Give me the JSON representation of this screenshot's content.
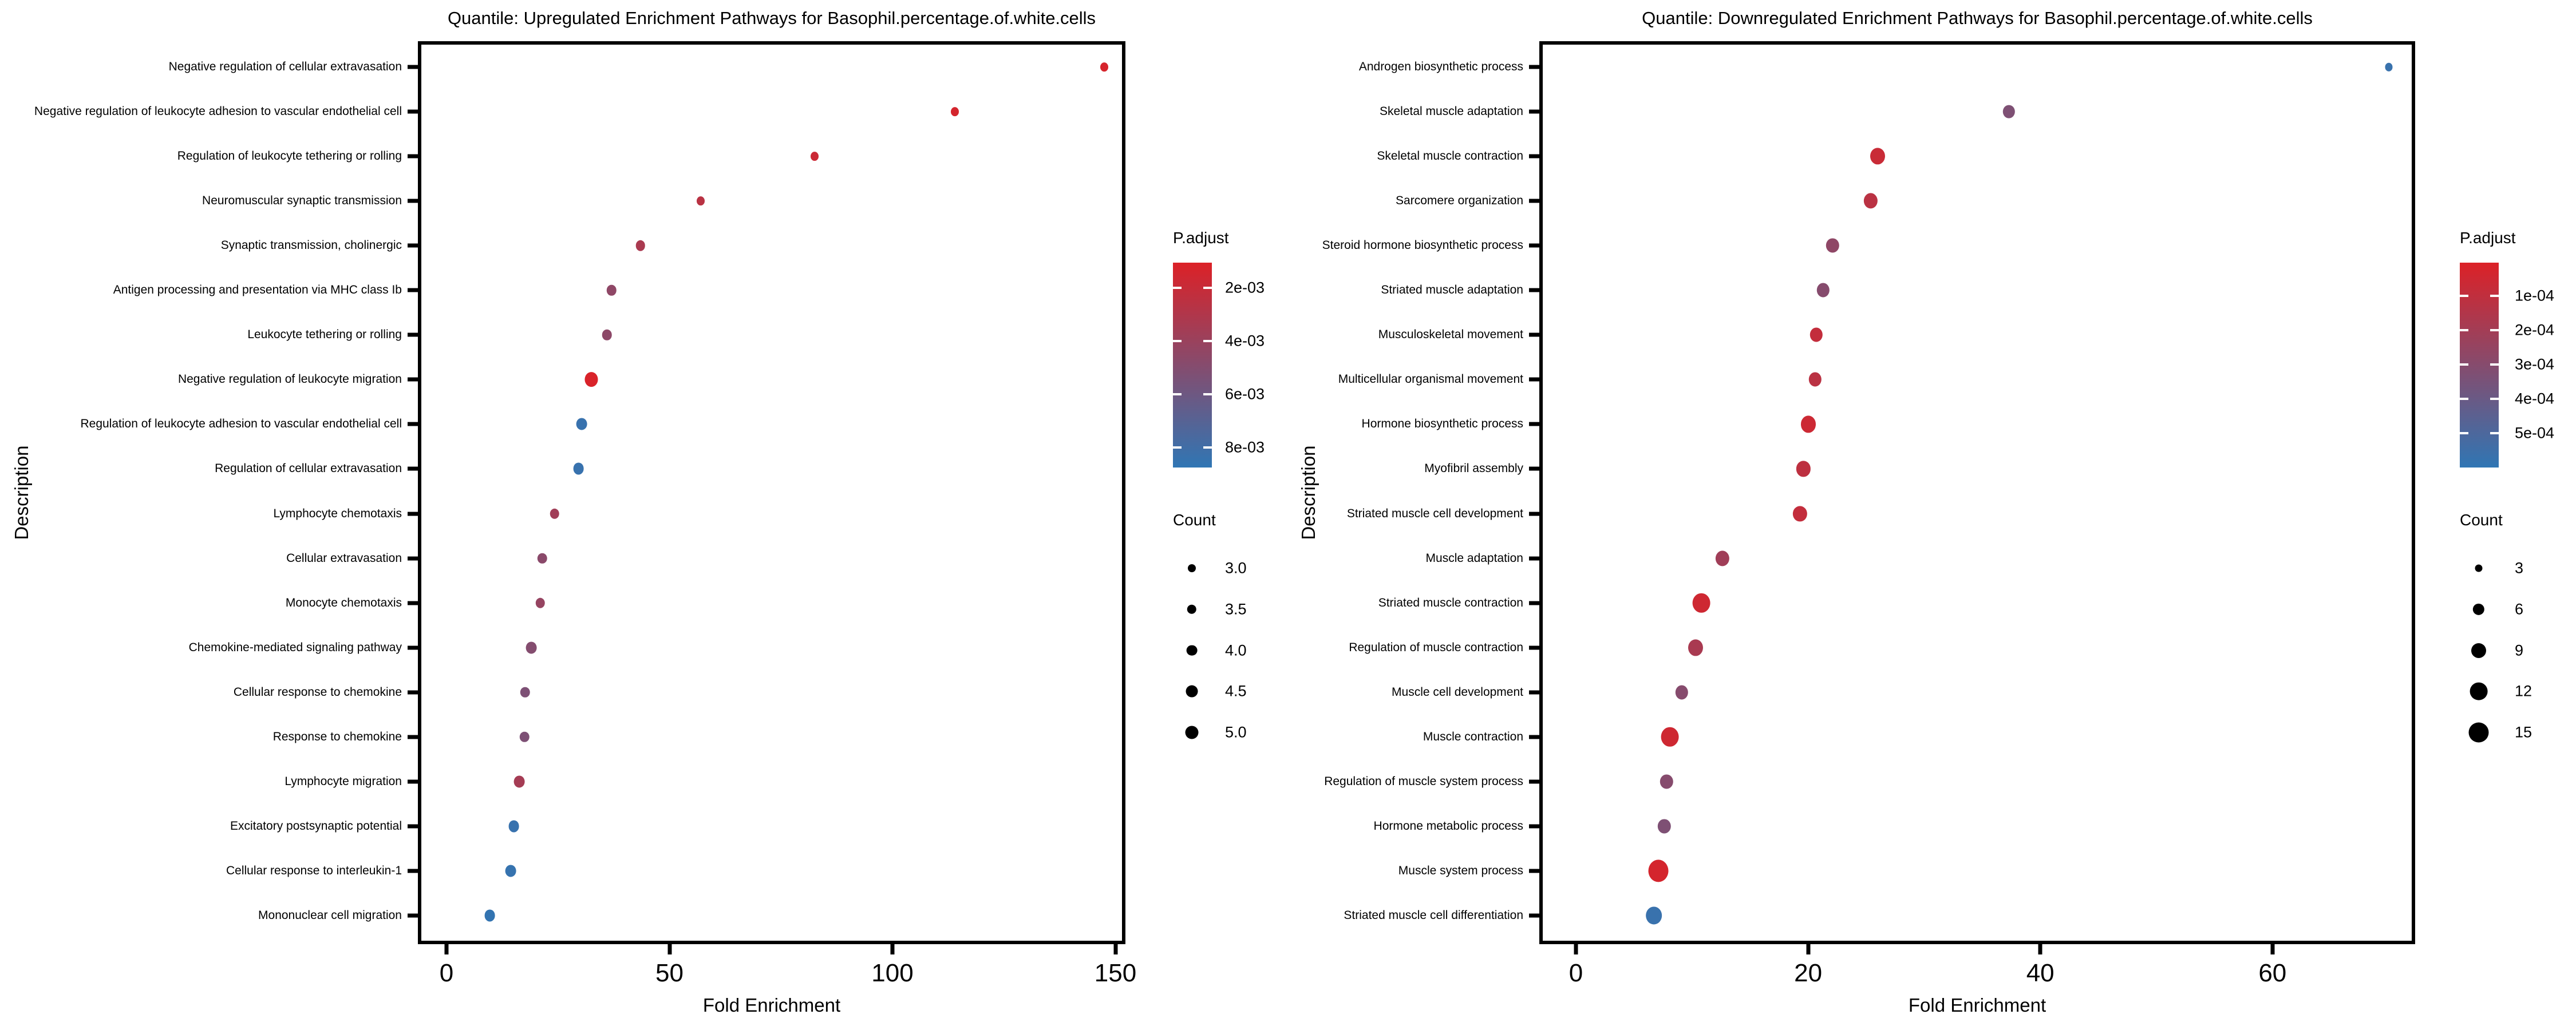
{
  "figure": {
    "background": "#ffffff",
    "text_color": "#000000"
  },
  "chart_data": [
    {
      "type": "scatter",
      "title": "Quantile: Upregulated Enrichment Pathways for Basophil.percentage.of.white.cells",
      "xlabel": "Fold Enrichment",
      "ylabel": "Description",
      "x_ticks": [
        0,
        50,
        100,
        150
      ],
      "xlim": [
        -8,
        152
      ],
      "grid": false,
      "legend_position": "right",
      "color_scale": {
        "title": "P.adjust",
        "color_low_p": "#DC2127",
        "color_high_p": "#3076B4",
        "domain": [
          0.00105,
          0.00875
        ],
        "ticks": [
          {
            "label": "2e-03",
            "value": 0.002
          },
          {
            "label": "4e-03",
            "value": 0.004
          },
          {
            "label": "6e-03",
            "value": 0.006
          },
          {
            "label": "8e-03",
            "value": 0.008
          }
        ]
      },
      "size_scale": {
        "title": "Count",
        "domain": [
          3,
          5
        ],
        "items": [
          {
            "label": "3.0",
            "value": 3
          },
          {
            "label": "3.5",
            "value": 3.5
          },
          {
            "label": "4.0",
            "value": 4
          },
          {
            "label": "4.5",
            "value": 4.5
          },
          {
            "label": "5.0",
            "value": 5
          }
        ]
      },
      "points": [
        {
          "label": "Negative regulation of cellular extravasation",
          "fold_enrichment": 147.5,
          "p_adjust": 0.0013,
          "count": 3
        },
        {
          "label": "Negative regulation of leukocyte adhesion to vascular endothelial cell",
          "fold_enrichment": 114,
          "p_adjust": 0.0014,
          "count": 3
        },
        {
          "label": "Regulation of leukocyte tethering or rolling",
          "fold_enrichment": 82.5,
          "p_adjust": 0.0018,
          "count": 3
        },
        {
          "label": "Neuromuscular synaptic transmission",
          "fold_enrichment": 57,
          "p_adjust": 0.0026,
          "count": 3
        },
        {
          "label": "Synaptic transmission, cholinergic",
          "fold_enrichment": 43.5,
          "p_adjust": 0.0033,
          "count": 3.5
        },
        {
          "label": "Antigen processing and presentation via MHC class Ib",
          "fold_enrichment": 37,
          "p_adjust": 0.0045,
          "count": 3.5
        },
        {
          "label": "Leukocyte tethering or rolling",
          "fold_enrichment": 36,
          "p_adjust": 0.0046,
          "count": 3.5
        },
        {
          "label": "Negative regulation of leukocyte migration",
          "fold_enrichment": 32.5,
          "p_adjust": 0.0012,
          "count": 5
        },
        {
          "label": "Regulation of leukocyte adhesion to vascular endothelial cell",
          "fold_enrichment": 30.3,
          "p_adjust": 0.0084,
          "count": 4
        },
        {
          "label": "Regulation of cellular extravasation",
          "fold_enrichment": 29.6,
          "p_adjust": 0.0084,
          "count": 4
        },
        {
          "label": "Lymphocyte chemotaxis",
          "fold_enrichment": 24.2,
          "p_adjust": 0.0037,
          "count": 3.5
        },
        {
          "label": "Cellular extravasation",
          "fold_enrichment": 21.5,
          "p_adjust": 0.0047,
          "count": 3.5
        },
        {
          "label": "Monocyte chemotaxis",
          "fold_enrichment": 21.0,
          "p_adjust": 0.0042,
          "count": 3.5
        },
        {
          "label": "Chemokine-mediated signaling pathway",
          "fold_enrichment": 19.0,
          "p_adjust": 0.005,
          "count": 4
        },
        {
          "label": "Cellular response to chemokine",
          "fold_enrichment": 17.6,
          "p_adjust": 0.0053,
          "count": 3.5
        },
        {
          "label": "Response to chemokine",
          "fold_enrichment": 17.5,
          "p_adjust": 0.0053,
          "count": 3.5
        },
        {
          "label": "Lymphocyte migration",
          "fold_enrichment": 16.3,
          "p_adjust": 0.0035,
          "count": 4
        },
        {
          "label": "Excitatory postsynaptic potential",
          "fold_enrichment": 15.1,
          "p_adjust": 0.0084,
          "count": 4
        },
        {
          "label": "Cellular response to interleukin-1",
          "fold_enrichment": 14.4,
          "p_adjust": 0.0085,
          "count": 4
        },
        {
          "label": "Mononuclear cell migration",
          "fold_enrichment": 9.7,
          "p_adjust": 0.0086,
          "count": 4
        }
      ]
    },
    {
      "type": "scatter",
      "title": "Quantile: Downregulated Enrichment Pathways for Basophil.percentage.of.white.cells",
      "xlabel": "Fold Enrichment",
      "ylabel": "Description",
      "x_ticks": [
        0,
        20,
        40,
        60
      ],
      "xlim": [
        -3.5,
        73.5
      ],
      "grid": false,
      "legend_position": "right",
      "color_scale": {
        "title": "P.adjust",
        "color_low_p": "#DC2127",
        "color_high_p": "#3076B4",
        "domain": [
          3e-06,
          0.0006
        ],
        "ticks": [
          {
            "label": "1e-04",
            "value": 0.0001
          },
          {
            "label": "2e-04",
            "value": 0.0002
          },
          {
            "label": "3e-04",
            "value": 0.0003
          },
          {
            "label": "4e-04",
            "value": 0.0004
          },
          {
            "label": "5e-04",
            "value": 0.0005
          }
        ]
      },
      "size_scale": {
        "title": "Count",
        "domain": [
          3,
          15
        ],
        "items": [
          {
            "label": "3",
            "value": 3
          },
          {
            "label": "6",
            "value": 6
          },
          {
            "label": "9",
            "value": 9
          },
          {
            "label": "12",
            "value": 12
          },
          {
            "label": "15",
            "value": 15
          }
        ]
      },
      "points": [
        {
          "label": "Androgen biosynthetic process",
          "fold_enrichment": 70,
          "p_adjust": 0.00057,
          "count": 3
        },
        {
          "label": "Skeletal muscle adaptation",
          "fold_enrichment": 37.3,
          "p_adjust": 0.00033,
          "count": 6
        },
        {
          "label": "Skeletal muscle contraction",
          "fold_enrichment": 26.0,
          "p_adjust": 7e-05,
          "count": 9
        },
        {
          "label": "Sarcomere organization",
          "fold_enrichment": 25.4,
          "p_adjust": 0.00012,
          "count": 8
        },
        {
          "label": "Steroid hormone biosynthetic process",
          "fold_enrichment": 22.1,
          "p_adjust": 0.00027,
          "count": 7
        },
        {
          "label": "Striated muscle adaptation",
          "fold_enrichment": 21.3,
          "p_adjust": 0.0003,
          "count": 7
        },
        {
          "label": "Musculoskeletal movement",
          "fold_enrichment": 20.7,
          "p_adjust": 9e-05,
          "count": 7
        },
        {
          "label": "Multicellular organismal movement",
          "fold_enrichment": 20.6,
          "p_adjust": 0.00012,
          "count": 7
        },
        {
          "label": "Hormone biosynthetic process",
          "fold_enrichment": 20.0,
          "p_adjust": 6e-05,
          "count": 9
        },
        {
          "label": "Myofibril assembly",
          "fold_enrichment": 19.6,
          "p_adjust": 0.00011,
          "count": 8
        },
        {
          "label": "Striated muscle cell development",
          "fold_enrichment": 19.3,
          "p_adjust": 9e-05,
          "count": 8
        },
        {
          "label": "Muscle adaptation",
          "fold_enrichment": 12.6,
          "p_adjust": 0.00021,
          "count": 8
        },
        {
          "label": "Striated muscle contraction",
          "fold_enrichment": 10.8,
          "p_adjust": 5e-05,
          "count": 12
        },
        {
          "label": "Regulation of muscle contraction",
          "fold_enrichment": 10.3,
          "p_adjust": 0.00018,
          "count": 9
        },
        {
          "label": "Muscle cell development",
          "fold_enrichment": 9.1,
          "p_adjust": 0.0003,
          "count": 7
        },
        {
          "label": "Muscle contraction",
          "fold_enrichment": 8.1,
          "p_adjust": 5e-05,
          "count": 12
        },
        {
          "label": "Regulation of muscle system process",
          "fold_enrichment": 7.8,
          "p_adjust": 0.0003,
          "count": 7
        },
        {
          "label": "Hormone metabolic process",
          "fold_enrichment": 7.6,
          "p_adjust": 0.00033,
          "count": 7
        },
        {
          "label": "Muscle system process",
          "fold_enrichment": 7.1,
          "p_adjust": 3e-05,
          "count": 15
        },
        {
          "label": "Striated muscle cell differentiation",
          "fold_enrichment": 6.7,
          "p_adjust": 0.00057,
          "count": 10
        }
      ]
    }
  ]
}
